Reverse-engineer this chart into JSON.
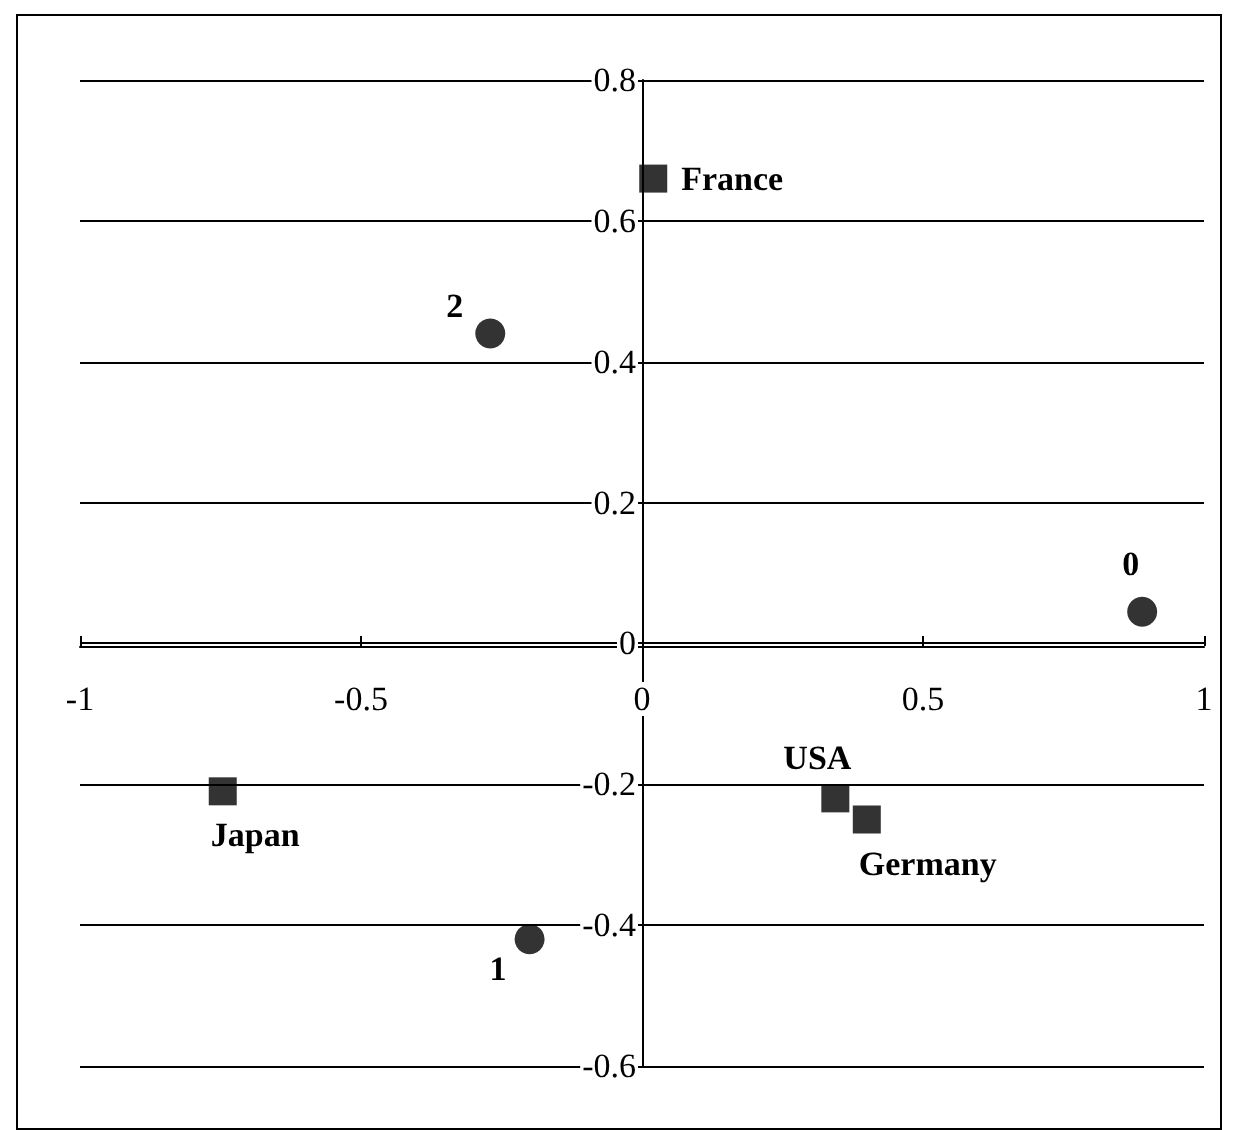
{
  "chart_data": {
    "type": "scatter",
    "series": [
      {
        "color": "#000000",
        "marker": "square",
        "x": [
          0.02,
          -0.746,
          0.344,
          0.4
        ],
        "values": [
          0.66,
          -0.21,
          -0.22,
          -0.25
        ]
      },
      {
        "color": "#000000",
        "marker": "circle",
        "x": [
          0.89,
          -0.2,
          -0.27
        ],
        "values": [
          0.045,
          -0.42,
          0.44
        ]
      }
    ],
    "annotations": [
      {
        "text": "France",
        "x": 0.02,
        "y": 0.66
      },
      {
        "text": "Japan",
        "x": -0.746,
        "y": -0.21
      },
      {
        "text": "USA",
        "x": 0.344,
        "y": -0.22
      },
      {
        "text": "Germany",
        "x": 0.4,
        "y": -0.25
      },
      {
        "text": "0",
        "x": 0.89,
        "y": 0.045
      },
      {
        "text": "1",
        "x": -0.2,
        "y": -0.42
      },
      {
        "text": "2",
        "x": -0.27,
        "y": 0.44
      }
    ],
    "xlim": [
      -1,
      1
    ],
    "xticks": [
      -1,
      -0.5,
      0,
      0.5,
      1
    ],
    "ylim": [
      -0.6,
      0.8
    ],
    "yticks": [
      -0.6,
      -0.4,
      -0.2,
      0,
      0.2,
      0.4,
      0.6,
      0.8
    ],
    "grid": "y"
  }
}
